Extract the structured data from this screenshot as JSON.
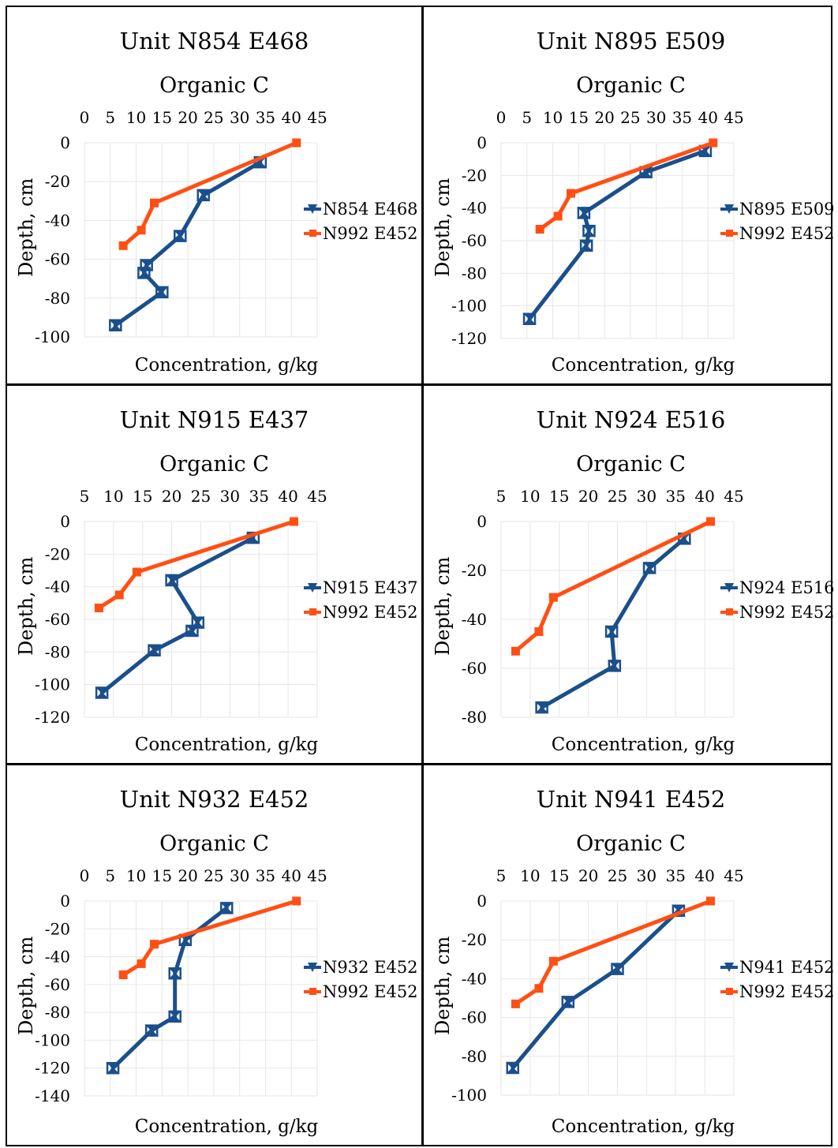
{
  "colors": {
    "series_main": "#1b4f8c",
    "series_ref": "#ff4f14",
    "grid": "#d9d9d9"
  },
  "chart_data": [
    {
      "type": "line",
      "panel_title": "Unit N854 E468",
      "title": "Organic C",
      "xlabel": "Concentration, g/kg",
      "ylabel": "Depth, cm",
      "xlim": [
        0,
        45
      ],
      "x_ticks": [
        0,
        5,
        10,
        15,
        20,
        25,
        30,
        35,
        40,
        45
      ],
      "ylim": [
        -100,
        0
      ],
      "y_ticks": [
        0,
        -20,
        -40,
        -60,
        -80,
        -100
      ],
      "x_axis_position": "top",
      "series": [
        {
          "name": "N854 E468",
          "color": "#1b4f8c",
          "marker": "bowtie",
          "points": [
            [
              34,
              -10
            ],
            [
              23,
              -27
            ],
            [
              18.5,
              -48
            ],
            [
              12,
              -63
            ],
            [
              11.5,
              -67
            ],
            [
              15,
              -77
            ],
            [
              6,
              -94
            ]
          ]
        },
        {
          "name": "N992 E452",
          "color": "#ff4f14",
          "marker": "square",
          "points": [
            [
              41,
              0
            ],
            [
              13.5,
              -31
            ],
            [
              11,
              -45
            ],
            [
              7.5,
              -53
            ]
          ]
        }
      ]
    },
    {
      "type": "line",
      "panel_title": "Unit N895 E509",
      "title": "Organic C",
      "xlabel": "Concentration, g/kg",
      "ylabel": "Depth, cm",
      "xlim": [
        0,
        45
      ],
      "x_ticks": [
        0,
        5,
        10,
        15,
        20,
        25,
        30,
        35,
        40,
        45
      ],
      "ylim": [
        -120,
        0
      ],
      "y_ticks": [
        0,
        -20,
        -40,
        -60,
        -80,
        -100,
        -120
      ],
      "x_axis_position": "top",
      "series": [
        {
          "name": "N895 E509",
          "color": "#1b4f8c",
          "marker": "bowtie",
          "points": [
            [
              39.5,
              -5
            ],
            [
              28,
              -18
            ],
            [
              16,
              -43
            ],
            [
              17,
              -54
            ],
            [
              16.5,
              -63
            ],
            [
              5.5,
              -108
            ]
          ]
        },
        {
          "name": "N992 E452",
          "color": "#ff4f14",
          "marker": "square",
          "points": [
            [
              41,
              0
            ],
            [
              13.5,
              -31
            ],
            [
              11,
              -45
            ],
            [
              7.5,
              -53
            ]
          ]
        }
      ]
    },
    {
      "type": "line",
      "panel_title": "Unit N915 E437",
      "title": "Organic C",
      "xlabel": "Concentration, g/kg",
      "ylabel": "Depth, cm",
      "xlim": [
        5,
        45
      ],
      "x_ticks": [
        5,
        10,
        15,
        20,
        25,
        30,
        35,
        40,
        45
      ],
      "ylim": [
        -120,
        0
      ],
      "y_ticks": [
        0,
        -20,
        -40,
        -60,
        -80,
        -100,
        -120
      ],
      "x_axis_position": "top",
      "series": [
        {
          "name": "N915 E437",
          "color": "#1b4f8c",
          "marker": "bowtie",
          "points": [
            [
              34,
              -10
            ],
            [
              20,
              -36
            ],
            [
              24.5,
              -62
            ],
            [
              23.5,
              -67
            ],
            [
              17,
              -79
            ],
            [
              8,
              -105
            ]
          ]
        },
        {
          "name": "N992 E452",
          "color": "#ff4f14",
          "marker": "square",
          "points": [
            [
              41,
              0
            ],
            [
              14,
              -31
            ],
            [
              11,
              -45
            ],
            [
              7.5,
              -53
            ]
          ]
        }
      ]
    },
    {
      "type": "line",
      "panel_title": "Unit N924 E516",
      "title": "Organic C",
      "xlabel": "Concentration, g/kg",
      "ylabel": "Depth, cm",
      "xlim": [
        5,
        45
      ],
      "x_ticks": [
        5,
        10,
        15,
        20,
        25,
        30,
        35,
        40,
        45
      ],
      "ylim": [
        -80,
        0
      ],
      "y_ticks": [
        0,
        -20,
        -40,
        -60,
        -80
      ],
      "x_axis_position": "top",
      "series": [
        {
          "name": "N924 E516",
          "color": "#1b4f8c",
          "marker": "bowtie",
          "points": [
            [
              36.5,
              -7
            ],
            [
              30.5,
              -19
            ],
            [
              24,
              -45
            ],
            [
              24.5,
              -59
            ],
            [
              12,
              -76
            ]
          ]
        },
        {
          "name": "N992 E452",
          "color": "#ff4f14",
          "marker": "square",
          "points": [
            [
              41,
              0
            ],
            [
              14,
              -31
            ],
            [
              11.5,
              -45
            ],
            [
              7.5,
              -53
            ]
          ]
        }
      ]
    },
    {
      "type": "line",
      "panel_title": "Unit N932 E452",
      "title": "Organic C",
      "xlabel": "Concentration, g/kg",
      "ylabel": "Depth, cm",
      "xlim": [
        0,
        45
      ],
      "x_ticks": [
        0,
        5,
        10,
        15,
        20,
        25,
        30,
        35,
        40,
        45
      ],
      "ylim": [
        -140,
        0
      ],
      "y_ticks": [
        0,
        -20,
        -40,
        -60,
        -80,
        -100,
        -120,
        -140
      ],
      "x_axis_position": "top",
      "series": [
        {
          "name": "N932 E452",
          "color": "#1b4f8c",
          "marker": "bowtie",
          "points": [
            [
              27.5,
              -5
            ],
            [
              19.5,
              -28
            ],
            [
              17.5,
              -52
            ],
            [
              17.5,
              -83
            ],
            [
              13,
              -93
            ],
            [
              5.5,
              -120
            ]
          ]
        },
        {
          "name": "N992 E452",
          "color": "#ff4f14",
          "marker": "square",
          "points": [
            [
              41,
              0
            ],
            [
              13.5,
              -31
            ],
            [
              11,
              -45
            ],
            [
              7.5,
              -53
            ]
          ]
        }
      ]
    },
    {
      "type": "line",
      "panel_title": "Unit N941 E452",
      "title": "Organic C",
      "xlabel": "Concentration, g/kg",
      "ylabel": "Depth, cm",
      "xlim": [
        5,
        45
      ],
      "x_ticks": [
        5,
        10,
        15,
        20,
        25,
        30,
        35,
        40,
        45
      ],
      "ylim": [
        -100,
        0
      ],
      "y_ticks": [
        0,
        -20,
        -40,
        -60,
        -80,
        -100
      ],
      "x_axis_position": "top",
      "series": [
        {
          "name": "N941 E452",
          "color": "#1b4f8c",
          "marker": "bowtie",
          "points": [
            [
              35.5,
              -5
            ],
            [
              25,
              -35
            ],
            [
              16.5,
              -52
            ],
            [
              7,
              -86
            ]
          ]
        },
        {
          "name": "N992 E452",
          "color": "#ff4f14",
          "marker": "square",
          "points": [
            [
              41,
              0
            ],
            [
              14,
              -31
            ],
            [
              11.5,
              -45
            ],
            [
              7.5,
              -53
            ]
          ]
        }
      ]
    }
  ]
}
